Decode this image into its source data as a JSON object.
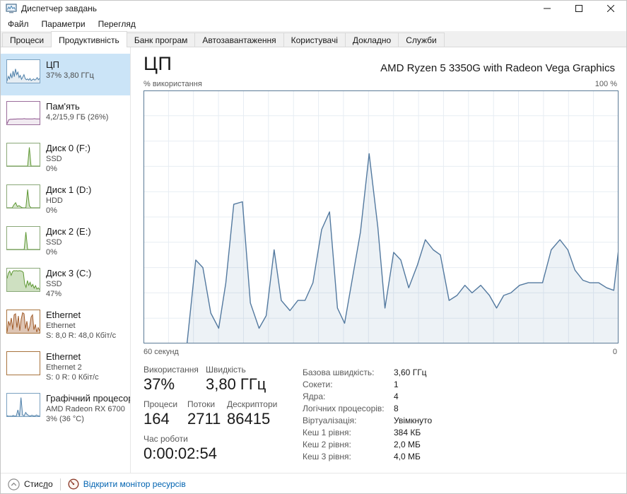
{
  "window": {
    "title": "Диспетчер завдань"
  },
  "menu": {
    "items": [
      "Файл",
      "Параметри",
      "Перегляд"
    ]
  },
  "tabs": [
    {
      "label": "Процеси",
      "active": false
    },
    {
      "label": "Продуктивність",
      "active": true
    },
    {
      "label": "Банк програм",
      "active": false
    },
    {
      "label": "Автозавантаження",
      "active": false
    },
    {
      "label": "Користувачі",
      "active": false
    },
    {
      "label": "Докладно",
      "active": false
    },
    {
      "label": "Служби",
      "active": false
    }
  ],
  "sidebar": {
    "items": [
      {
        "id": "cpu",
        "title": "ЦП",
        "subs": [
          "37% 3,80 ГГц"
        ],
        "selected": true,
        "color": "#4c7ea8",
        "border": "#7ba1c0",
        "fill_opacity": 0.14,
        "spark": [
          8,
          30,
          18,
          42,
          22,
          55,
          28,
          65,
          38,
          50,
          24,
          34,
          16,
          26,
          38,
          20,
          14,
          18,
          12,
          20,
          10,
          14,
          18,
          12,
          16,
          24,
          14,
          20
        ]
      },
      {
        "id": "memory",
        "title": "Пам'ять",
        "subs": [
          "4,2/15,9 ГБ (26%)"
        ],
        "selected": false,
        "color": "#8a4f8a",
        "border": "#9b6d9b",
        "fill_opacity": 0.12,
        "spark": [
          3,
          22,
          24,
          24,
          25,
          25,
          26,
          26,
          26,
          26,
          27,
          26,
          26,
          26,
          26,
          26,
          27,
          26,
          26,
          26
        ]
      },
      {
        "id": "disk0",
        "title": "Диск 0 (F:)",
        "subs": [
          "SSD",
          "0%"
        ],
        "selected": false,
        "color": "#5d9732",
        "border": "#8aa878",
        "fill_opacity": 0.25,
        "spark": [
          0,
          0,
          0,
          0,
          0,
          0,
          0,
          0,
          0,
          0,
          0,
          0,
          0,
          88,
          0,
          0,
          0,
          0,
          0,
          0
        ]
      },
      {
        "id": "disk1",
        "title": "Диск 1 (D:)",
        "subs": [
          "HDD",
          "0%"
        ],
        "selected": false,
        "color": "#5d9732",
        "border": "#8aa878",
        "fill_opacity": 0.25,
        "spark": [
          0,
          0,
          0,
          0,
          14,
          24,
          6,
          10,
          4,
          0,
          0,
          0,
          86,
          10,
          0,
          0,
          0,
          0,
          0,
          0
        ]
      },
      {
        "id": "disk2",
        "title": "Диск 2 (E:)",
        "subs": [
          "SSD",
          "0%"
        ],
        "selected": false,
        "color": "#5d9732",
        "border": "#8aa878",
        "fill_opacity": 0.25,
        "spark": [
          0,
          0,
          0,
          0,
          0,
          0,
          0,
          0,
          0,
          0,
          0,
          82,
          0,
          0,
          0,
          0,
          0,
          0,
          0,
          0
        ]
      },
      {
        "id": "disk3",
        "title": "Диск 3 (C:)",
        "subs": [
          "SSD",
          "47%"
        ],
        "selected": false,
        "color": "#5d9732",
        "border": "#8aa878",
        "fill_opacity": 0.3,
        "spark": [
          60,
          85,
          95,
          75,
          92,
          97,
          96,
          97,
          95,
          97,
          96,
          94,
          88,
          35,
          18,
          50,
          28,
          42,
          22,
          32,
          14,
          26,
          10,
          16,
          8
        ]
      },
      {
        "id": "ethernet1",
        "title": "Ethernet",
        "subs": [
          "Ethernet",
          "S: 8,0 R: 48,0 Кбіт/с"
        ],
        "selected": false,
        "color": "#a05a28",
        "border": "#a8733d",
        "fill_opacity": 0.35,
        "spark": [
          4,
          55,
          35,
          70,
          15,
          85,
          90,
          25,
          80,
          10,
          65,
          95,
          90,
          20,
          55,
          8,
          30,
          75,
          85,
          15,
          40,
          4,
          25,
          10
        ]
      },
      {
        "id": "ethernet2",
        "title": "Ethernet",
        "subs": [
          "Ethernet 2",
          "S: 0 R: 0 Кбіт/с"
        ],
        "selected": false,
        "color": "#a05a28",
        "border": "#a8733d",
        "fill_opacity": 0,
        "spark": [
          0,
          0,
          0,
          0,
          0,
          0,
          0,
          0,
          0,
          0,
          0,
          0,
          0,
          0,
          0,
          0,
          0,
          0,
          0,
          0
        ]
      },
      {
        "id": "gpu",
        "title": "Графічний процесор",
        "subs": [
          "AMD Radeon RX 6700",
          "3% (36 °C)"
        ],
        "selected": false,
        "color": "#4c7ea8",
        "border": "#7ba1c0",
        "fill_opacity": 0.2,
        "spark": [
          3,
          0,
          1,
          0,
          4,
          0,
          2,
          30,
          0,
          88,
          6,
          2,
          18,
          8,
          3,
          1,
          5,
          2,
          1,
          6,
          2,
          1
        ]
      }
    ]
  },
  "main": {
    "title": "ЦП",
    "subtitle": "AMD Ryzen 5 3350G with Radeon Vega Graphics",
    "axis_top_left": "% використання",
    "axis_top_right": "100 %",
    "axis_bottom_left": "60 секунд",
    "axis_bottom_right": "0",
    "stats": {
      "usage_label": "Використання",
      "usage_value": "37%",
      "speed_label": "Швидкість",
      "speed_value": "3,80 ГГц",
      "processes_label": "Процеси",
      "processes_value": "164",
      "threads_label": "Потоки",
      "threads_value": "2711",
      "handles_label": "Дескриптори",
      "handles_value": "86415",
      "uptime_label": "Час роботи",
      "uptime_value": "0:00:02:54"
    },
    "details": [
      {
        "label": "Базова швидкість:",
        "value": "3,60 ГГц"
      },
      {
        "label": "Сокети:",
        "value": "1"
      },
      {
        "label": "Ядра:",
        "value": "4"
      },
      {
        "label": "Логічних процесорів:",
        "value": "8"
      },
      {
        "label": "Віртуалізація:",
        "value": "Увімкнуто"
      },
      {
        "label": "Кеш 1 рівня:",
        "value": "384 КБ"
      },
      {
        "label": "Кеш 2 рівня:",
        "value": "2,0 МБ"
      },
      {
        "label": "Кеш 3 рівня:",
        "value": "4,0 МБ"
      }
    ]
  },
  "chart_data": {
    "type": "area",
    "title": "% використання",
    "series_name": "Використання ЦП",
    "ylim": [
      0,
      100
    ],
    "x_window_seconds": 60,
    "x_left_label": "60 секунд",
    "x_right_label": "0",
    "y_max_label": "100 %",
    "grid": true,
    "line_color": "#53799f",
    "fill_color": "rgba(83,126,166,0.10)",
    "grid_color": "#e7edf3",
    "border_color": "#5b7a96",
    "points": [
      [
        0,
        0
      ],
      [
        5.5,
        0
      ],
      [
        6.6,
        33
      ],
      [
        7.5,
        30
      ],
      [
        8.5,
        12
      ],
      [
        9.5,
        6
      ],
      [
        10.4,
        24
      ],
      [
        11.4,
        55
      ],
      [
        12.5,
        56
      ],
      [
        13.5,
        16
      ],
      [
        14.6,
        6
      ],
      [
        15.5,
        11
      ],
      [
        16.5,
        37
      ],
      [
        17.4,
        17
      ],
      [
        18.5,
        13
      ],
      [
        19.5,
        17
      ],
      [
        20.4,
        17
      ],
      [
        21.4,
        24
      ],
      [
        22.5,
        45
      ],
      [
        23.5,
        52
      ],
      [
        24.5,
        14
      ],
      [
        25.4,
        8
      ],
      [
        27.4,
        44
      ],
      [
        28.5,
        75
      ],
      [
        29.6,
        46
      ],
      [
        30.5,
        14
      ],
      [
        31.6,
        36
      ],
      [
        32.5,
        33
      ],
      [
        33.5,
        22
      ],
      [
        34.6,
        31
      ],
      [
        35.6,
        41
      ],
      [
        36.6,
        37
      ],
      [
        37.5,
        35
      ],
      [
        38.6,
        17
      ],
      [
        39.6,
        19
      ],
      [
        40.6,
        23
      ],
      [
        41.5,
        20
      ],
      [
        42.6,
        23
      ],
      [
        43.7,
        19
      ],
      [
        44.6,
        14
      ],
      [
        45.5,
        19
      ],
      [
        46.4,
        20
      ],
      [
        47.5,
        23
      ],
      [
        48.6,
        24
      ],
      [
        49.5,
        24
      ],
      [
        50.4,
        24
      ],
      [
        51.5,
        37
      ],
      [
        52.6,
        41
      ],
      [
        53.6,
        37
      ],
      [
        54.5,
        29
      ],
      [
        55.5,
        25
      ],
      [
        56.4,
        24
      ],
      [
        57.5,
        24
      ],
      [
        58.5,
        22
      ],
      [
        59.4,
        21
      ],
      [
        60,
        37
      ]
    ]
  },
  "statusbar": {
    "compact_pre": "Стис",
    "compact_key": "л",
    "compact_post": "о",
    "link_label": "Відкрити монітор ресурсів"
  },
  "colors": {
    "selected_item_bg": "#cbe4f7",
    "link": "#0063b1"
  }
}
